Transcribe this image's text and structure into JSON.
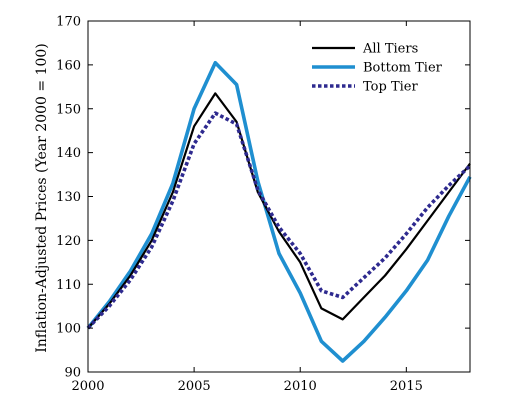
{
  "chart_data": {
    "type": "line",
    "title": "",
    "xlabel": "",
    "ylabel": "Inflation-Adjusted Prices (Year 2000 = 100)",
    "xlim": [
      2000,
      2018
    ],
    "ylim": [
      90,
      170
    ],
    "x_ticks": [
      2000,
      2005,
      2010,
      2015
    ],
    "y_ticks": [
      90,
      100,
      110,
      120,
      130,
      140,
      150,
      160,
      170
    ],
    "grid": false,
    "legend_position": "top-right",
    "x": [
      2000,
      2001,
      2002,
      2003,
      2004,
      2005,
      2006,
      2007,
      2008,
      2009,
      2010,
      2011,
      2012,
      2013,
      2014,
      2015,
      2016,
      2017,
      2018
    ],
    "series": [
      {
        "name": "All Tiers",
        "color": "#000000",
        "style": "solid",
        "values": [
          100,
          105.5,
          112,
          120,
          131,
          146,
          153.5,
          147,
          131,
          122,
          115,
          104.5,
          102,
          107,
          112,
          118,
          124.5,
          131,
          137.5
        ]
      },
      {
        "name": "Bottom Tier",
        "color": "#1f8fd0",
        "style": "solid",
        "values": [
          100,
          106,
          113,
          121.5,
          133,
          150,
          160.5,
          155.5,
          133.5,
          117,
          108,
          97,
          92.5,
          97,
          102.5,
          108.5,
          115.5,
          125.5,
          134.5
        ]
      },
      {
        "name": "Top Tier",
        "color": "#2e2a8f",
        "style": "dotted",
        "values": [
          100,
          105,
          111,
          118.5,
          129,
          142,
          149,
          146.5,
          131.5,
          123,
          117,
          108.5,
          107,
          111.5,
          116,
          121.5,
          127.5,
          132.5,
          137
        ]
      }
    ]
  }
}
